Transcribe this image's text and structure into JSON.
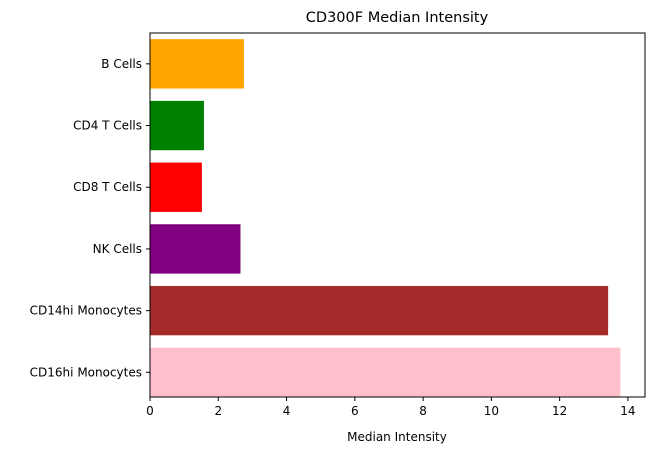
{
  "chart_data": {
    "type": "bar",
    "orientation": "horizontal",
    "title": "CD300F Median Intensity",
    "xlabel": "Median Intensity",
    "ylabel": "",
    "xlim": [
      0,
      14.5
    ],
    "xticks": [
      "0",
      "2",
      "4",
      "6",
      "8",
      "10",
      "12",
      "14"
    ],
    "categories": [
      "B Cells",
      "CD4 T Cells",
      "CD8 T Cells",
      "NK Cells",
      "CD14hi Monocytes",
      "CD16hi Monocytes"
    ],
    "values": [
      2.75,
      1.58,
      1.52,
      2.65,
      13.42,
      13.78
    ],
    "colors": [
      "#ffa500",
      "#008000",
      "#ff0000",
      "#800080",
      "#a52a2a",
      "#ffc0cb"
    ],
    "grid": false,
    "legend": "none"
  }
}
